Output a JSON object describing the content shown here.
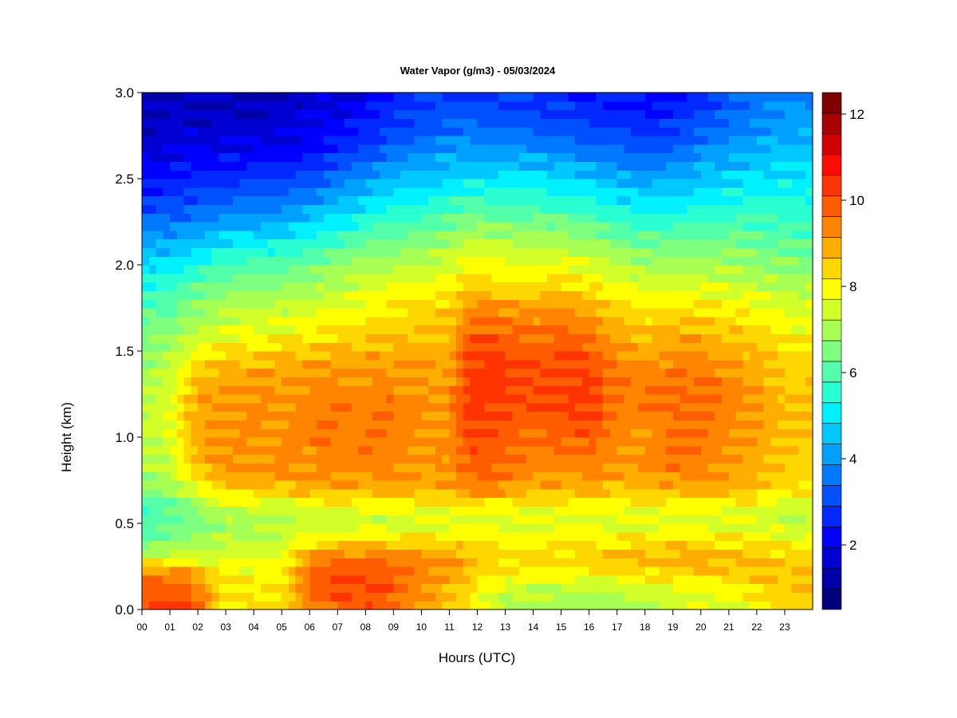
{
  "chart_data": {
    "type": "heatmap",
    "title": "Water Vapor (g/m3) - 05/03/2024",
    "xlabel": "Hours (UTC)",
    "ylabel": "Height (km)",
    "xlim": [
      0,
      24
    ],
    "ylim": [
      0.0,
      3.0
    ],
    "x_tick_labels": [
      "00",
      "01",
      "02",
      "03",
      "04",
      "05",
      "06",
      "07",
      "08",
      "09",
      "10",
      "11",
      "12",
      "13",
      "14",
      "15",
      "16",
      "17",
      "18",
      "19",
      "20",
      "21",
      "22",
      "23"
    ],
    "y_tick_labels": [
      "0.0",
      "0.5",
      "1.0",
      "1.5",
      "2.0",
      "2.5",
      "3.0"
    ],
    "colorbar": {
      "min": 0.5,
      "max": 12.5,
      "step": 0.5,
      "tick_labels": [
        "2",
        "4",
        "6",
        "8",
        "10",
        "12"
      ],
      "colors": [
        "#00007f",
        "#0000a8",
        "#0000d2",
        "#0000ff",
        "#0028ff",
        "#0050ff",
        "#0078ff",
        "#00a0ff",
        "#00c8ff",
        "#00f0ff",
        "#2affd4",
        "#54ffaa",
        "#7fff7f",
        "#a8ff54",
        "#d2ff2a",
        "#ffff00",
        "#ffd700",
        "#ffae00",
        "#ff8500",
        "#ff5d00",
        "#ff3400",
        "#ff0b00",
        "#d20000",
        "#a80000",
        "#7f0000"
      ]
    },
    "heights": [
      0.0,
      0.1,
      0.2,
      0.3,
      0.4,
      0.5,
      0.6,
      0.7,
      0.8,
      0.9,
      1.0,
      1.1,
      1.2,
      1.3,
      1.4,
      1.5,
      1.6,
      1.7,
      1.8,
      1.9,
      2.0,
      2.1,
      2.2,
      2.3,
      2.4,
      2.5,
      2.6,
      2.7,
      2.8,
      2.9,
      3.0
    ],
    "times": [
      0.0,
      0.5,
      1.0,
      1.5,
      2.0,
      3.0,
      4.0,
      5.0,
      6.0,
      7.0,
      8.0,
      9.0,
      10.0,
      11.0,
      11.5,
      12.0,
      13.0,
      14.0,
      15.0,
      16.0,
      17.0,
      18.0,
      19.0,
      20.0,
      21.0,
      22.0,
      23.0,
      24.0
    ],
    "values": [
      [
        10.5,
        10.5,
        10.5,
        10.5,
        10.5,
        8.5,
        8.5,
        8.6,
        9.8,
        10.2,
        10.3,
        10.0,
        9.6,
        9.0,
        8.6,
        8.0,
        7.4,
        7.2,
        7.2,
        7.2,
        7.2,
        7.4,
        7.6,
        7.8,
        8.0,
        8.2,
        8.6,
        8.6
      ],
      [
        10.3,
        10.4,
        10.3,
        10.2,
        9.8,
        8.5,
        8.5,
        8.6,
        10.0,
        10.4,
        10.5,
        10.2,
        9.7,
        9.0,
        8.8,
        8.2,
        7.6,
        7.4,
        7.4,
        7.4,
        7.4,
        7.6,
        7.8,
        8.0,
        8.2,
        8.4,
        8.8,
        8.8
      ],
      [
        9.8,
        10.0,
        10.0,
        9.9,
        9.2,
        8.4,
        8.3,
        8.4,
        10.0,
        10.4,
        10.5,
        10.3,
        9.8,
        9.3,
        9.2,
        8.8,
        8.4,
        8.2,
        8.2,
        8.2,
        8.4,
        8.5,
        8.6,
        8.8,
        8.8,
        8.9,
        9.0,
        9.0
      ],
      [
        7.8,
        7.8,
        7.9,
        7.9,
        7.9,
        7.9,
        7.9,
        8.0,
        9.6,
        10.0,
        10.1,
        9.9,
        9.6,
        9.5,
        9.3,
        9.0,
        8.8,
        8.8,
        8.8,
        8.8,
        9.0,
        9.2,
        9.4,
        9.4,
        9.2,
        9.0,
        8.8,
        8.8
      ],
      [
        6.4,
        6.6,
        6.8,
        7.0,
        7.2,
        7.5,
        7.6,
        7.8,
        8.4,
        8.6,
        8.6,
        8.6,
        8.6,
        8.6,
        8.6,
        8.5,
        8.4,
        8.4,
        8.4,
        8.4,
        8.5,
        8.6,
        8.6,
        8.6,
        8.5,
        8.4,
        8.2,
        8.2
      ],
      [
        6.0,
        6.2,
        6.4,
        6.6,
        6.8,
        7.2,
        7.2,
        7.3,
        7.5,
        7.6,
        7.6,
        7.6,
        7.7,
        7.8,
        7.8,
        7.8,
        7.8,
        7.8,
        7.8,
        7.8,
        7.8,
        7.8,
        7.8,
        7.8,
        7.8,
        7.8,
        7.6,
        7.6
      ],
      [
        6.0,
        6.2,
        6.4,
        6.6,
        7.0,
        7.6,
        7.7,
        7.8,
        8.0,
        8.0,
        8.1,
        8.1,
        8.2,
        8.3,
        8.5,
        8.4,
        8.3,
        8.2,
        8.2,
        8.2,
        8.2,
        8.2,
        8.2,
        8.2,
        8.1,
        8.0,
        7.8,
        7.8
      ],
      [
        7.0,
        7.0,
        7.2,
        7.6,
        8.2,
        8.8,
        8.9,
        9.0,
        9.2,
        9.2,
        9.2,
        9.2,
        9.2,
        9.3,
        9.8,
        9.8,
        9.6,
        9.2,
        9.2,
        9.2,
        9.0,
        9.0,
        9.2,
        9.4,
        9.2,
        9.0,
        8.6,
        8.6
      ],
      [
        7.2,
        7.3,
        7.6,
        8.2,
        8.8,
        9.4,
        9.6,
        9.6,
        9.7,
        9.7,
        9.7,
        9.6,
        9.5,
        9.5,
        10.0,
        10.1,
        9.9,
        9.6,
        9.6,
        9.7,
        9.4,
        9.5,
        9.8,
        9.8,
        9.5,
        9.2,
        8.8,
        8.8
      ],
      [
        7.4,
        7.5,
        7.8,
        8.4,
        9.2,
        9.6,
        9.6,
        9.6,
        9.7,
        9.8,
        9.8,
        9.7,
        9.6,
        9.6,
        10.2,
        10.3,
        10.1,
        9.8,
        9.9,
        10.0,
        9.6,
        9.6,
        9.9,
        9.9,
        9.6,
        9.3,
        8.9,
        8.9
      ],
      [
        7.5,
        7.6,
        8.0,
        8.6,
        9.3,
        9.6,
        9.6,
        9.6,
        9.8,
        9.8,
        9.8,
        9.8,
        9.6,
        9.6,
        10.3,
        10.4,
        10.3,
        10.0,
        10.2,
        10.3,
        9.8,
        9.6,
        9.9,
        10.0,
        9.7,
        9.4,
        9.0,
        9.0
      ],
      [
        7.5,
        7.6,
        8.0,
        8.6,
        9.4,
        9.6,
        9.6,
        9.6,
        9.8,
        9.8,
        9.8,
        9.8,
        9.6,
        9.6,
        10.4,
        10.6,
        10.5,
        10.2,
        10.4,
        10.5,
        9.9,
        9.7,
        10.0,
        10.1,
        9.8,
        9.5,
        9.0,
        9.0
      ],
      [
        7.4,
        7.5,
        7.9,
        8.6,
        9.4,
        9.6,
        9.6,
        9.6,
        9.8,
        9.8,
        9.8,
        9.8,
        9.6,
        9.6,
        10.5,
        10.7,
        10.7,
        10.4,
        10.6,
        10.6,
        10.0,
        9.8,
        10.0,
        10.1,
        9.8,
        9.5,
        9.0,
        9.0
      ],
      [
        7.3,
        7.4,
        7.8,
        8.5,
        9.3,
        9.5,
        9.5,
        9.5,
        9.7,
        9.7,
        9.7,
        9.7,
        9.5,
        9.5,
        10.5,
        10.8,
        10.8,
        10.5,
        10.7,
        10.6,
        10.0,
        9.8,
        10.0,
        10.0,
        9.7,
        9.4,
        8.9,
        8.9
      ],
      [
        7.2,
        7.3,
        7.6,
        8.2,
        8.8,
        9.2,
        9.3,
        9.3,
        9.5,
        9.5,
        9.5,
        9.5,
        9.4,
        9.4,
        10.4,
        10.7,
        10.7,
        10.4,
        10.6,
        10.5,
        9.8,
        9.6,
        9.8,
        9.8,
        9.5,
        9.2,
        8.8,
        8.8
      ],
      [
        7.0,
        7.1,
        7.3,
        7.7,
        8.2,
        8.6,
        8.7,
        8.8,
        9.0,
        9.1,
        9.2,
        9.2,
        9.2,
        9.2,
        10.3,
        10.6,
        10.5,
        10.2,
        10.4,
        10.3,
        9.6,
        9.3,
        9.6,
        9.6,
        9.3,
        9.0,
        8.6,
        8.6
      ],
      [
        6.8,
        6.9,
        7.0,
        7.3,
        7.6,
        8.0,
        8.1,
        8.2,
        8.4,
        8.6,
        8.8,
        8.9,
        9.0,
        9.1,
        10.0,
        10.3,
        10.2,
        9.9,
        10.1,
        10.0,
        9.3,
        9.0,
        9.2,
        9.2,
        9.0,
        8.7,
        8.3,
        8.3
      ],
      [
        6.4,
        6.5,
        6.6,
        6.9,
        7.2,
        7.6,
        7.7,
        7.8,
        8.0,
        8.2,
        8.4,
        8.6,
        8.8,
        8.9,
        9.6,
        10.0,
        9.9,
        9.6,
        9.8,
        9.6,
        8.9,
        8.6,
        8.8,
        8.8,
        8.6,
        8.3,
        8.0,
        8.0
      ],
      [
        6.0,
        6.1,
        6.2,
        6.5,
        6.8,
        7.2,
        7.3,
        7.4,
        7.6,
        7.8,
        8.1,
        8.3,
        8.5,
        8.6,
        9.1,
        9.3,
        9.2,
        9.1,
        9.2,
        9.0,
        8.5,
        8.2,
        8.3,
        8.3,
        8.2,
        8.0,
        7.7,
        7.7
      ],
      [
        5.5,
        5.6,
        5.7,
        6.0,
        6.3,
        6.7,
        6.8,
        6.9,
        7.1,
        7.4,
        7.7,
        7.9,
        8.1,
        8.2,
        8.6,
        8.7,
        8.6,
        8.5,
        8.6,
        8.4,
        8.0,
        7.7,
        7.8,
        7.8,
        7.7,
        7.5,
        7.3,
        7.3
      ],
      [
        5.0,
        5.1,
        5.2,
        5.4,
        5.7,
        6.1,
        6.2,
        6.3,
        6.6,
        6.9,
        7.2,
        7.4,
        7.6,
        7.8,
        8.1,
        8.2,
        8.1,
        8.0,
        8.1,
        7.9,
        7.5,
        7.2,
        7.3,
        7.3,
        7.2,
        7.1,
        6.9,
        6.9
      ],
      [
        4.5,
        4.5,
        4.6,
        4.8,
        5.0,
        5.4,
        5.5,
        5.6,
        5.9,
        6.3,
        6.6,
        6.8,
        7.1,
        7.3,
        7.6,
        7.7,
        7.6,
        7.5,
        7.5,
        7.3,
        6.9,
        6.7,
        6.8,
        6.8,
        6.8,
        6.7,
        6.5,
        6.5
      ],
      [
        3.9,
        3.9,
        4.0,
        4.2,
        4.4,
        4.7,
        4.7,
        4.8,
        5.2,
        5.6,
        6.0,
        6.3,
        6.5,
        6.8,
        7.0,
        7.1,
        7.0,
        6.9,
        6.9,
        6.7,
        6.3,
        6.1,
        6.2,
        6.3,
        6.3,
        6.3,
        6.1,
        6.1
      ],
      [
        3.3,
        3.3,
        3.4,
        3.5,
        3.7,
        3.9,
        4.0,
        4.1,
        4.5,
        4.9,
        5.3,
        5.7,
        5.9,
        6.2,
        6.4,
        6.4,
        6.4,
        6.3,
        6.2,
        6.1,
        5.7,
        5.5,
        5.6,
        5.8,
        5.8,
        5.9,
        5.8,
        5.8
      ],
      [
        2.8,
        2.8,
        2.9,
        3.0,
        3.1,
        3.3,
        3.4,
        3.5,
        3.8,
        4.3,
        4.7,
        5.1,
        5.3,
        5.6,
        5.8,
        5.8,
        5.8,
        5.7,
        5.6,
        5.4,
        5.1,
        4.9,
        5.0,
        5.3,
        5.4,
        5.5,
        5.5,
        5.5
      ],
      [
        2.4,
        2.4,
        2.5,
        2.6,
        2.7,
        2.8,
        2.9,
        3.0,
        3.2,
        3.6,
        4.1,
        4.5,
        4.8,
        5.0,
        5.2,
        5.2,
        5.2,
        5.1,
        5.0,
        4.8,
        4.5,
        4.3,
        4.4,
        4.8,
        5.0,
        5.1,
        5.2,
        5.2
      ],
      [
        2.1,
        2.1,
        2.2,
        2.3,
        2.3,
        2.4,
        2.4,
        2.5,
        2.7,
        3.0,
        3.5,
        4.0,
        4.3,
        4.5,
        4.6,
        4.6,
        4.6,
        4.5,
        4.4,
        4.2,
        3.9,
        3.7,
        3.8,
        4.3,
        4.5,
        4.7,
        4.9,
        4.9
      ],
      [
        1.8,
        1.8,
        1.9,
        2.0,
        2.0,
        2.0,
        2.0,
        2.1,
        2.3,
        2.6,
        3.0,
        3.4,
        3.8,
        4.0,
        4.1,
        4.0,
        4.0,
        3.9,
        3.8,
        3.6,
        3.4,
        3.2,
        3.3,
        3.8,
        4.1,
        4.3,
        4.6,
        4.6
      ],
      [
        1.6,
        1.6,
        1.7,
        1.7,
        1.7,
        1.7,
        1.7,
        1.8,
        2.0,
        2.3,
        2.6,
        3.0,
        3.3,
        3.5,
        3.6,
        3.5,
        3.5,
        3.4,
        3.3,
        3.1,
        2.9,
        2.8,
        2.9,
        3.4,
        3.7,
        4.0,
        4.3,
        4.3
      ],
      [
        1.5,
        1.5,
        1.5,
        1.6,
        1.6,
        1.5,
        1.5,
        1.6,
        1.8,
        2.0,
        2.3,
        2.7,
        3.0,
        3.2,
        3.2,
        3.2,
        3.1,
        3.0,
        2.9,
        2.7,
        2.6,
        2.5,
        2.6,
        3.0,
        3.4,
        3.7,
        4.1,
        4.1
      ],
      [
        1.4,
        1.4,
        1.4,
        1.5,
        1.5,
        1.4,
        1.4,
        1.5,
        1.7,
        1.9,
        2.2,
        2.5,
        2.8,
        3.0,
        3.0,
        3.0,
        2.9,
        2.8,
        2.7,
        2.5,
        2.4,
        2.3,
        2.4,
        2.8,
        3.2,
        3.5,
        3.9,
        3.9
      ]
    ]
  }
}
